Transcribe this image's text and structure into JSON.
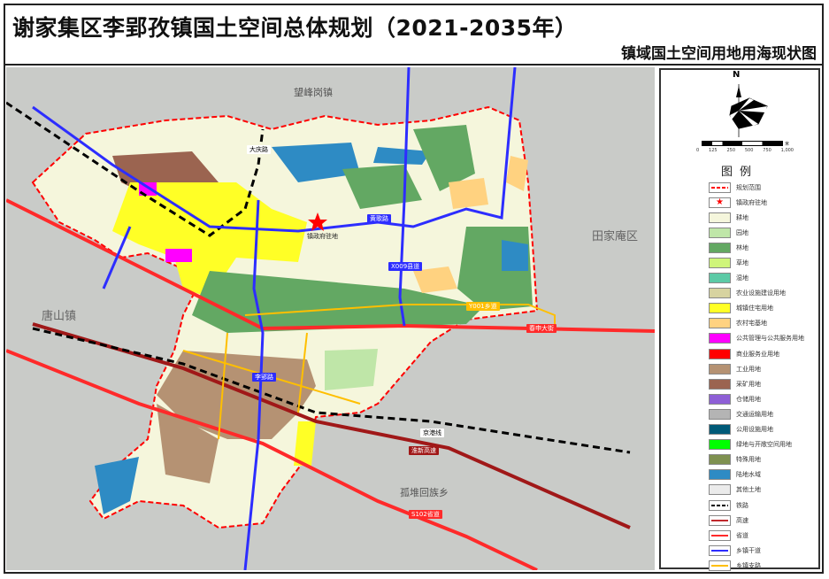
{
  "header": {
    "title": "谢家集区李郢孜镇国土空间总体规划（2021-2035年）",
    "subtitle": "镇域国土空间用地用海现状图"
  },
  "map": {
    "neighbors": [
      "望峰岗镇",
      "田家庵区",
      "唐山镇",
      "孤堆回族乡"
    ],
    "town_seat": "镇政府驻地",
    "roads": {
      "huangge": "黄歌路",
      "chunshen": "春申大街",
      "y001": "Y001乡道",
      "railway": "京港线",
      "expressway": "淮新高速",
      "s102": "S102省道",
      "liying": "李郢路",
      "daqing": "大庆路",
      "x009": "X009县道"
    }
  },
  "legend": {
    "compass_letter": "N",
    "scale_ticks": [
      "0",
      "125",
      "250",
      "500",
      "750",
      "1,000"
    ],
    "scale_unit": "米",
    "title": "图例",
    "items": [
      {
        "label": "规划范围",
        "type": "dash",
        "color": "#ff0000"
      },
      {
        "label": "镇政府驻地",
        "type": "star",
        "color": "#ff0000"
      },
      {
        "label": "耕地",
        "color": "#f5f6dc"
      },
      {
        "label": "园地",
        "color": "#bfe6a8"
      },
      {
        "label": "林地",
        "color": "#63a863"
      },
      {
        "label": "草地",
        "color": "#cff57a"
      },
      {
        "label": "湿地",
        "color": "#5ccaa6"
      },
      {
        "label": "农业设施建设用地",
        "color": "#d7d3a0"
      },
      {
        "label": "城镇住宅用地",
        "color": "#ffff26"
      },
      {
        "label": "农村宅基地",
        "color": "#ffd280"
      },
      {
        "label": "公共管理与公共服务用地",
        "color": "#ff00ff"
      },
      {
        "label": "商业服务业用地",
        "color": "#ff0000"
      },
      {
        "label": "工业用地",
        "color": "#b59273"
      },
      {
        "label": "采矿用地",
        "color": "#9b6450"
      },
      {
        "label": "仓储用地",
        "color": "#8e5fd6"
      },
      {
        "label": "交通运输用地",
        "color": "#b4b4b4"
      },
      {
        "label": "公用设施用地",
        "color": "#005a78"
      },
      {
        "label": "绿地与开敞空间用地",
        "color": "#00ff00"
      },
      {
        "label": "特殊用地",
        "color": "#7f9150"
      },
      {
        "label": "陆地水域",
        "color": "#2e8bc4"
      },
      {
        "label": "其他土地",
        "color": "#ebebeb"
      },
      {
        "label": "铁路",
        "type": "rail",
        "color": "#000000"
      },
      {
        "label": "高速",
        "type": "line",
        "color": "#c0282d"
      },
      {
        "label": "省道",
        "type": "line",
        "color": "#ff2a2a"
      },
      {
        "label": "乡镇干道",
        "type": "line",
        "color": "#2d2dff"
      },
      {
        "label": "乡镇支路",
        "type": "line",
        "color": "#ffbf00"
      }
    ]
  }
}
